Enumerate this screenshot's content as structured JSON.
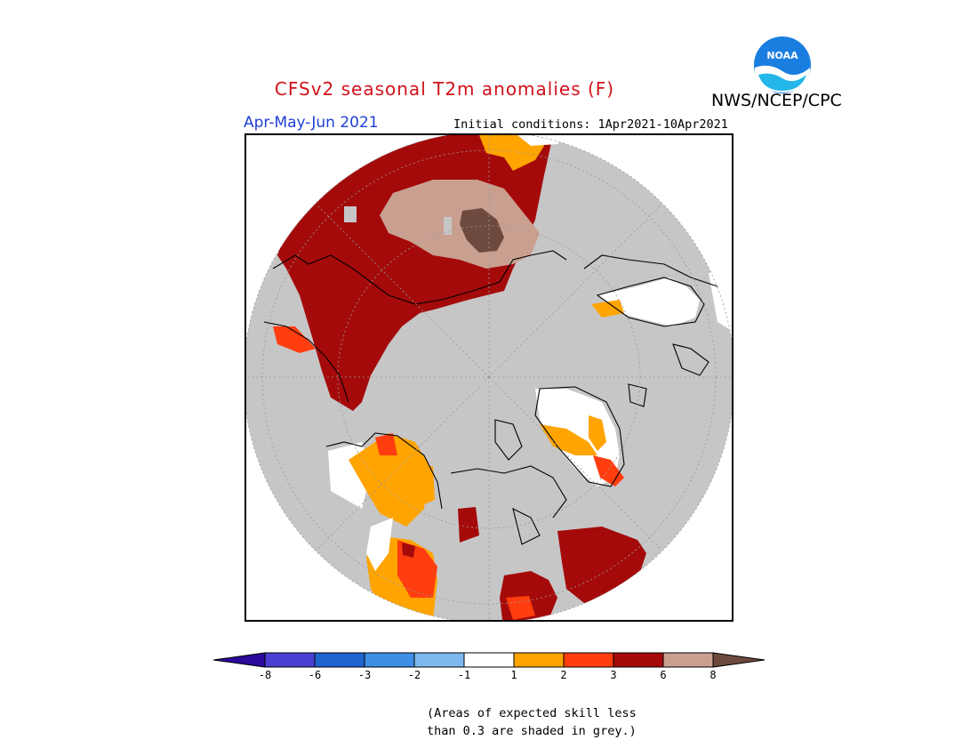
{
  "header": {
    "title": "CFSv2 seasonal T2m anomalies (F)",
    "agency": "NWS/NCEP/CPC",
    "season": "Apr-May-Jun 2021",
    "initial_conditions": "Initial conditions: 1Apr2021-10Apr2021",
    "logo_text": "NOAA"
  },
  "map": {
    "projection": "north polar stereographic",
    "grey_meaning": "low skill"
  },
  "colorbar": {
    "labels": [
      "-8",
      "-6",
      "-3",
      "-2",
      "-1",
      "1",
      "2",
      "3",
      "6",
      "8"
    ],
    "colors": [
      "#2a0a9a",
      "#4a3fd0",
      "#1f63cf",
      "#3f8ee6",
      "#7db9ef",
      "#ffffff",
      "#ffa400",
      "#ff3d0f",
      "#a50a0a",
      "#c9a090",
      "#6e4a3e"
    ]
  },
  "note": {
    "line1": "(Areas of expected skill less",
    "line2": "than 0.3 are shaded in grey.)"
  }
}
